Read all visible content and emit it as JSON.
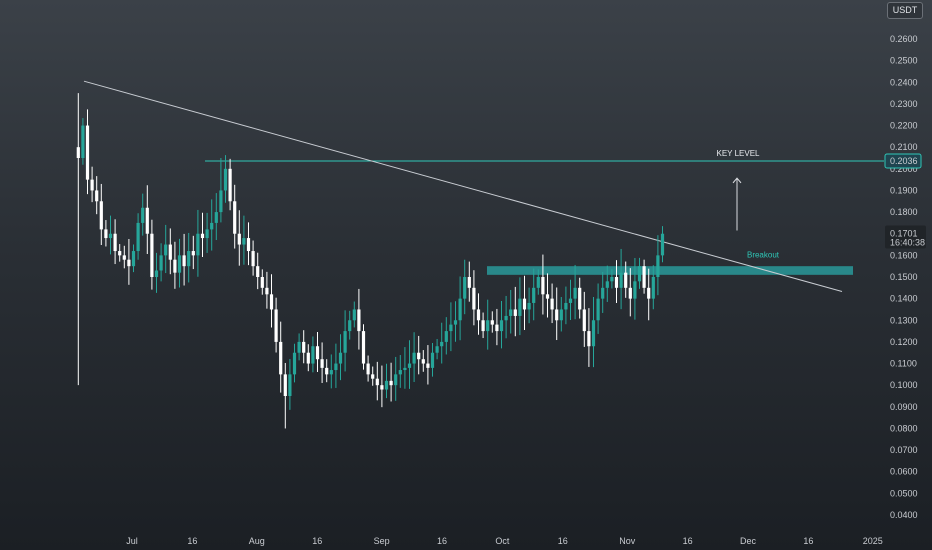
{
  "chart_data": {
    "type": "candlestick",
    "symbol_currency": "USDT",
    "ylim": [
      0.035,
      0.27
    ],
    "y_ticks": [
      "0.2600",
      "0.2500",
      "0.2400",
      "0.2300",
      "0.2200",
      "0.2100",
      "0.2000",
      "0.1900",
      "0.1800",
      "0.1700",
      "0.1600",
      "0.1500",
      "0.1400",
      "0.1300",
      "0.1200",
      "0.1100",
      "0.1000",
      "0.0900",
      "0.0800",
      "0.0700",
      "0.0600",
      "0.0500",
      "0.0400"
    ],
    "x_ticks": [
      "Jul",
      "16",
      "Aug",
      "16",
      "Sep",
      "16",
      "Oct",
      "16",
      "Nov",
      "16",
      "Dec",
      "16",
      "2025"
    ],
    "x_tick_dates": [
      "2024-07-01",
      "2024-07-16",
      "2024-08-01",
      "2024-08-16",
      "2024-09-01",
      "2024-09-16",
      "2024-10-01",
      "2024-10-16",
      "2024-11-01",
      "2024-11-16",
      "2024-12-01",
      "2024-12-16",
      "2025-01-01"
    ],
    "close": [
      0.205,
      0.22,
      0.195,
      0.19,
      0.185,
      0.172,
      0.168,
      0.17,
      0.162,
      0.16,
      0.158,
      0.155,
      0.162,
      0.175,
      0.182,
      0.17,
      0.15,
      0.153,
      0.16,
      0.165,
      0.158,
      0.152,
      0.16,
      0.155,
      0.162,
      0.16,
      0.17,
      0.168,
      0.172,
      0.175,
      0.18,
      0.19,
      0.2,
      0.185,
      0.17,
      0.165,
      0.168,
      0.162,
      0.155,
      0.15,
      0.145,
      0.142,
      0.135,
      0.12,
      0.105,
      0.095,
      0.105,
      0.115,
      0.12,
      0.115,
      0.11,
      0.118,
      0.112,
      0.108,
      0.105,
      0.107,
      0.11,
      0.115,
      0.125,
      0.13,
      0.135,
      0.125,
      0.11,
      0.105,
      0.103,
      0.1,
      0.098,
      0.102,
      0.1,
      0.105,
      0.107,
      0.108,
      0.11,
      0.115,
      0.112,
      0.11,
      0.108,
      0.115,
      0.118,
      0.12,
      0.125,
      0.128,
      0.13,
      0.14,
      0.15,
      0.145,
      0.135,
      0.13,
      0.125,
      0.13,
      0.128,
      0.125,
      0.13,
      0.132,
      0.135,
      0.132,
      0.14,
      0.135,
      0.138,
      0.145,
      0.15,
      0.142,
      0.14,
      0.135,
      0.13,
      0.135,
      0.138,
      0.14,
      0.145,
      0.135,
      0.125,
      0.118,
      0.13,
      0.14,
      0.145,
      0.148,
      0.15,
      0.145,
      0.152,
      0.145,
      0.14,
      0.148,
      0.155,
      0.145,
      0.14,
      0.15,
      0.16,
      0.17
    ],
    "title": "",
    "xlabel": "",
    "ylabel": "",
    "grid": false,
    "last_price": "0.1701",
    "countdown": "16:40:38",
    "key_level_value": "0.2036",
    "key_level_label": "KEY LEVEL",
    "breakout_label": "Breakout",
    "breakout_zone": [
      0.151,
      0.155
    ],
    "colors": {
      "up": "#26a69a",
      "down": "#ffffff",
      "key_level": "#2fc7b7",
      "zone": "#2aa7a7",
      "trendline": "#c8ccd2",
      "axis_text": "#c9ccd1"
    }
  }
}
